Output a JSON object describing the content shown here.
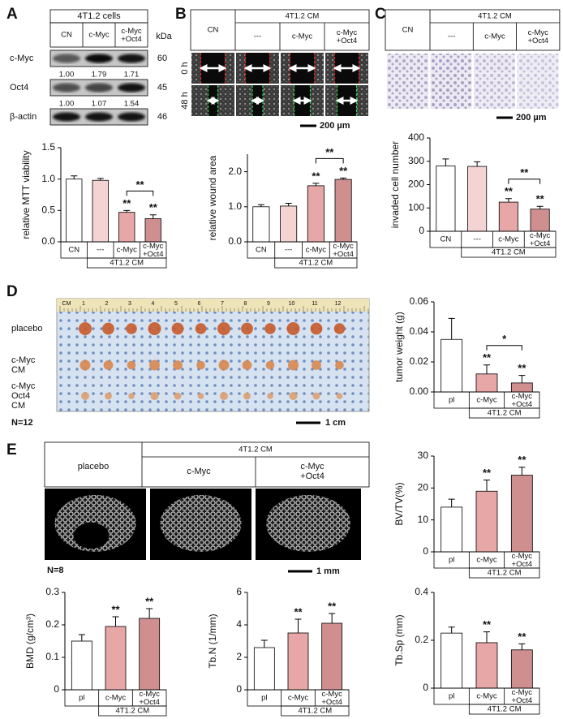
{
  "panel_labels": [
    "A",
    "B",
    "C",
    "D",
    "E"
  ],
  "blot": {
    "title": "4T1.2 cells",
    "lanes": [
      "CN",
      "c-Myc",
      "c-Myc\n+Oct4"
    ],
    "unit": "kDa",
    "rows": [
      {
        "name": "c-Myc",
        "kda": "60",
        "quant": [
          "1.00",
          "1.79",
          "1.71"
        ]
      },
      {
        "name": "Oct4",
        "kda": "45",
        "quant": [
          "1.00",
          "1.07",
          "1.54"
        ]
      },
      {
        "name": "β-actin",
        "kda": "46"
      }
    ]
  },
  "wound": {
    "control": "CN",
    "group": "4T1.2 CM",
    "columns": [
      "---",
      "c-Myc",
      "c-Myc\n+Oct4"
    ],
    "times": [
      "0 h",
      "48 h"
    ],
    "scale": "200 µm"
  },
  "invasion": {
    "control": "CN",
    "group": "4T1.2 CM",
    "columns": [
      "---",
      "c-Myc",
      "c-Myc\n+Oct4"
    ],
    "scale": "200 µm"
  },
  "tumor_photo": {
    "ruler_unit": "CM",
    "ruler_numbers": [
      "1",
      "2",
      "3",
      "4",
      "5",
      "6",
      "7",
      "8",
      "9",
      "10",
      "11",
      "12"
    ],
    "rows": [
      "placebo",
      "c-Myc\nCM",
      "c-Myc\nOct4\nCM"
    ],
    "n": "N=12",
    "scale": "1 cm"
  },
  "bone_images": {
    "group": "4T1.2 CM",
    "columns": [
      "placebo",
      "c-Myc",
      "c-Myc\n+Oct4"
    ],
    "n": "N=8",
    "scale": "1 mm"
  },
  "chart_data": [
    {
      "type": "bar",
      "ylabel": "relative MTT viability",
      "categories": [
        "CN",
        "---",
        "c-Myc",
        "c-Myc\n+Oct4"
      ],
      "group_label": "4T1.2 CM",
      "values": [
        1.0,
        0.98,
        0.47,
        0.37
      ],
      "errors": [
        0.05,
        0.03,
        0.03,
        0.06
      ],
      "colors": [
        "#ffffff",
        "#f4d3d3",
        "#e7a7a7",
        "#cf8f8f"
      ],
      "ylim": [
        0,
        1.5
      ],
      "yticks": [
        {
          "value": 0,
          "label": "0.0"
        },
        0.5,
        {
          "value": 1,
          "label": "1.0"
        },
        1.5
      ],
      "annotations": [
        {
          "at": 2,
          "text": "**"
        },
        {
          "at": 3,
          "text": "**"
        }
      ],
      "bracket": {
        "between": [
          2,
          3
        ],
        "text": "**"
      }
    },
    {
      "type": "bar",
      "ylabel": "relative wound area",
      "categories": [
        "CN",
        "---",
        "c-Myc",
        "c-Myc\n+Oct4"
      ],
      "group_label": "4T1.2 CM",
      "values": [
        1.0,
        1.02,
        1.6,
        1.78
      ],
      "errors": [
        0.06,
        0.08,
        0.07,
        0.04
      ],
      "colors": [
        "#ffffff",
        "#f4d3d3",
        "#e7a7a7",
        "#cf8f8f"
      ],
      "ylim": [
        0,
        2.5
      ],
      "yticks": [
        {
          "value": 0,
          "label": "0.0"
        },
        {
          "value": 1,
          "label": "1.0"
        },
        {
          "value": 2,
          "label": "2.0"
        }
      ],
      "annotations": [
        {
          "at": 2,
          "text": "**"
        },
        {
          "at": 3,
          "text": "**"
        }
      ],
      "bracket": {
        "between": [
          2,
          3
        ],
        "text": "**"
      }
    },
    {
      "type": "bar",
      "ylabel": "invaded  cell number",
      "categories": [
        "CN",
        "---",
        "c-Myc",
        "c-Myc\n+Oct4"
      ],
      "group_label": "4T1.2 CM",
      "values": [
        280,
        278,
        125,
        95
      ],
      "errors": [
        30,
        20,
        15,
        12
      ],
      "colors": [
        "#ffffff",
        "#f4d3d3",
        "#e7a7a7",
        "#cf8f8f"
      ],
      "ylim": [
        0,
        400
      ],
      "yticks": [
        0,
        100,
        200,
        300,
        400
      ],
      "annotations": [
        {
          "at": 2,
          "text": "**"
        },
        {
          "at": 3,
          "text": "**"
        }
      ],
      "bracket": {
        "between": [
          2,
          3
        ],
        "text": "**"
      }
    },
    {
      "type": "bar",
      "ylabel": "tumor weight (g)",
      "categories": [
        "pl",
        "c-Myc",
        "c-Myc\n+Oct4"
      ],
      "group_label": "4T1.2 CM",
      "values": [
        0.035,
        0.012,
        0.006
      ],
      "errors": [
        0.014,
        0.006,
        0.005
      ],
      "colors": [
        "#ffffff",
        "#e7a7a7",
        "#cf8f8f"
      ],
      "ylim": [
        0,
        0.06
      ],
      "yticks": [
        {
          "value": 0,
          "label": "0.00"
        },
        0.02,
        0.04,
        0.06
      ],
      "annotations": [
        {
          "at": 1,
          "text": "**"
        },
        {
          "at": 2,
          "text": "**"
        }
      ],
      "bracket": {
        "between": [
          1,
          2
        ],
        "text": "*"
      }
    },
    {
      "type": "bar",
      "ylabel": "BV/TV(%)",
      "categories": [
        "pl",
        "c-Myc",
        "c-Myc\n+Oct4"
      ],
      "group_label": "4T1.2 CM",
      "values": [
        14,
        19,
        24
      ],
      "errors": [
        2.5,
        3.5,
        2.5
      ],
      "colors": [
        "#ffffff",
        "#e7a7a7",
        "#cf8f8f"
      ],
      "ylim": [
        0,
        30
      ],
      "yticks": [
        0,
        10,
        20,
        30
      ],
      "annotations": [
        {
          "at": 1,
          "text": "**"
        },
        {
          "at": 2,
          "text": "**"
        }
      ]
    },
    {
      "type": "bar",
      "ylabel": "BMD (g/cm³)",
      "categories": [
        "pl",
        "c-Myc",
        "c-Myc\n+Oct4"
      ],
      "group_label": "4T1.2 CM",
      "values": [
        0.15,
        0.195,
        0.22
      ],
      "errors": [
        0.02,
        0.03,
        0.03
      ],
      "colors": [
        "#ffffff",
        "#e7a7a7",
        "#cf8f8f"
      ],
      "ylim": [
        0,
        0.3
      ],
      "yticks": [
        0,
        0.1,
        0.2,
        0.3
      ],
      "annotations": [
        {
          "at": 1,
          "text": "**"
        },
        {
          "at": 2,
          "text": "**"
        }
      ]
    },
    {
      "type": "bar",
      "ylabel": "Tb.N (1/mm)",
      "categories": [
        "pl",
        "c-Myc",
        "c-Myc\n+Oct4"
      ],
      "group_label": "4T1.2 CM",
      "values": [
        2.6,
        3.5,
        4.1
      ],
      "errors": [
        0.45,
        0.85,
        0.6
      ],
      "colors": [
        "#ffffff",
        "#e7a7a7",
        "#cf8f8f"
      ],
      "ylim": [
        0,
        6
      ],
      "yticks": [
        0,
        2,
        4,
        6
      ],
      "annotations": [
        {
          "at": 1,
          "text": "**"
        },
        {
          "at": 2,
          "text": "**"
        }
      ]
    },
    {
      "type": "bar",
      "ylabel": "Tb.Sp (mm)",
      "categories": [
        "pl",
        "c-Myc",
        "c-Myc\n+Oct4"
      ],
      "group_label": "4T1.2 CM",
      "values": [
        0.23,
        0.19,
        0.16
      ],
      "errors": [
        0.025,
        0.045,
        0.025
      ],
      "colors": [
        "#ffffff",
        "#e7a7a7",
        "#cf8f8f"
      ],
      "ylim": [
        0,
        0.4
      ],
      "yticks": [
        0,
        0.2,
        0.4
      ],
      "annotations": [
        {
          "at": 1,
          "text": "**"
        },
        {
          "at": 2,
          "text": "**"
        }
      ]
    }
  ]
}
